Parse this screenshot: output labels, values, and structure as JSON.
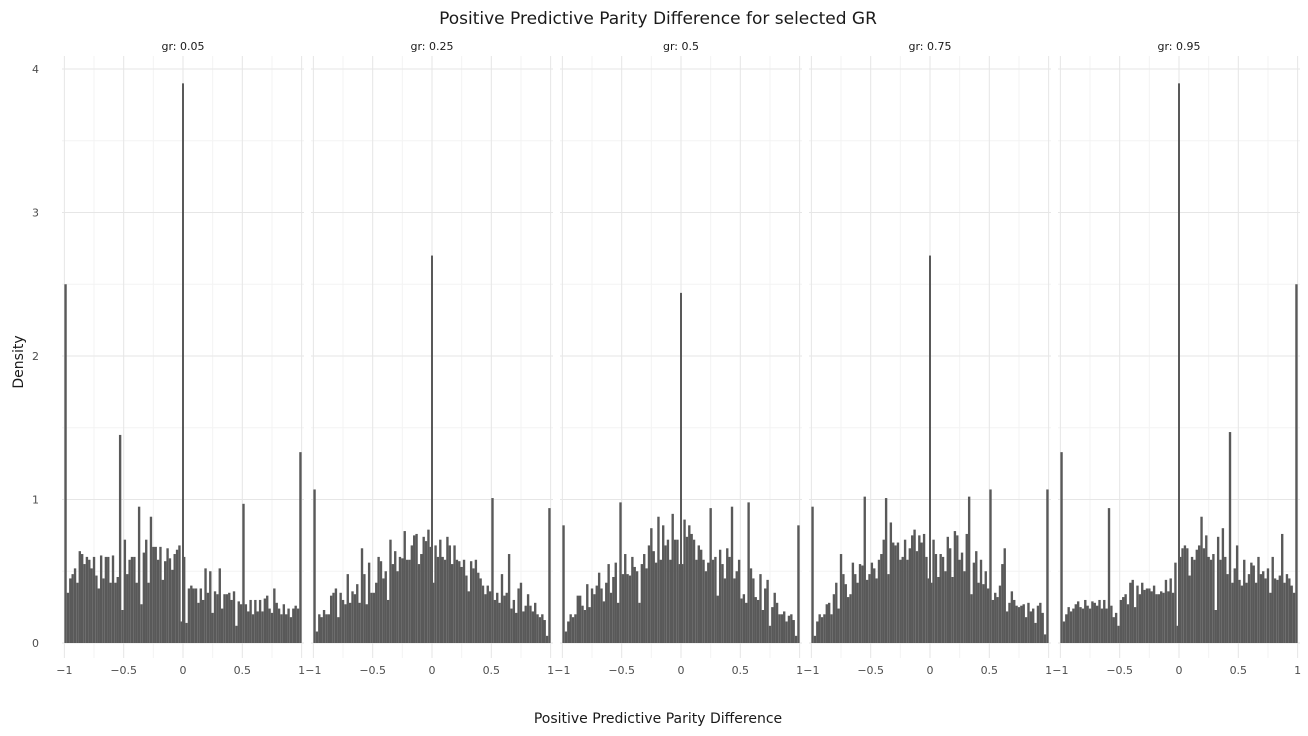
{
  "chart_data": {
    "type": "bar",
    "title": "Positive Predictive Parity Difference for selected GR",
    "xlabel": "Positive Predictive Parity Difference",
    "ylabel": "Density",
    "xlim": [
      -1.02,
      1.02
    ],
    "ylim": [
      0,
      4
    ],
    "x_ticks": [
      -1,
      -0.5,
      0,
      0.5,
      1
    ],
    "x_tick_labels": [
      "−1",
      "−0.5",
      "0",
      "0.5",
      "1"
    ],
    "y_ticks": [
      0,
      1,
      2,
      3,
      4
    ],
    "y_tick_labels": [
      "0",
      "1",
      "2",
      "3",
      "4"
    ],
    "grid": true,
    "bar_color": "#595959",
    "bin_width": 0.02,
    "bin_centers": [
      -0.99,
      -0.97,
      -0.95,
      -0.93,
      -0.91,
      -0.89,
      -0.87,
      -0.85,
      -0.83,
      -0.81,
      -0.79,
      -0.77,
      -0.75,
      -0.73,
      -0.71,
      -0.69,
      -0.67,
      -0.65,
      -0.63,
      -0.61,
      -0.59,
      -0.57,
      -0.55,
      -0.53,
      -0.51,
      -0.49,
      -0.47,
      -0.45,
      -0.43,
      -0.41,
      -0.39,
      -0.37,
      -0.35,
      -0.33,
      -0.31,
      -0.29,
      -0.27,
      -0.25,
      -0.23,
      -0.21,
      -0.19,
      -0.17,
      -0.15,
      -0.13,
      -0.11,
      -0.09,
      -0.07,
      -0.05,
      -0.03,
      -0.01,
      0.01,
      0.03,
      0.05,
      0.07,
      0.09,
      0.11,
      0.13,
      0.15,
      0.17,
      0.19,
      0.21,
      0.23,
      0.25,
      0.27,
      0.29,
      0.31,
      0.33,
      0.35,
      0.37,
      0.39,
      0.41,
      0.43,
      0.45,
      0.47,
      0.49,
      0.51,
      0.53,
      0.55,
      0.57,
      0.59,
      0.61,
      0.63,
      0.65,
      0.67,
      0.69,
      0.71,
      0.73,
      0.75,
      0.77,
      0.79,
      0.81,
      0.83,
      0.85,
      0.87,
      0.89,
      0.91,
      0.93,
      0.95,
      0.97,
      0.99
    ],
    "panels": [
      {
        "label": "gr: 0.05",
        "values": [
          2.5,
          0.35,
          0.45,
          0.48,
          0.52,
          0.42,
          0.64,
          0.62,
          0.55,
          0.6,
          0.58,
          0.52,
          0.6,
          0.47,
          0.38,
          0.61,
          0.45,
          0.6,
          0.6,
          0.42,
          0.61,
          0.42,
          0.46,
          1.45,
          0.23,
          0.72,
          0.48,
          0.58,
          0.6,
          0.6,
          0.42,
          0.95,
          0.27,
          0.63,
          0.72,
          0.42,
          0.88,
          0.67,
          0.67,
          0.58,
          0.67,
          0.44,
          0.57,
          0.66,
          0.59,
          0.51,
          0.62,
          0.65,
          0.68,
          0.15,
          0.6,
          0.14,
          0.38,
          0.4,
          0.38,
          0.38,
          0.28,
          0.38,
          0.3,
          0.52,
          0.35,
          0.5,
          0.21,
          0.36,
          0.34,
          0.52,
          0.24,
          0.34,
          0.34,
          0.35,
          0.3,
          0.36,
          0.12,
          0.29,
          0.27,
          0.97,
          0.27,
          0.22,
          0.3,
          0.2,
          0.3,
          0.22,
          0.3,
          0.22,
          0.31,
          0.33,
          0.24,
          0.21,
          0.38,
          0.28,
          0.24,
          0.2,
          0.27,
          0.2,
          0.24,
          0.18,
          0.24,
          0.26,
          0.24,
          1.33
        ],
        "zero_spike": 3.9
      },
      {
        "label": "gr: 0.25",
        "values": [
          1.07,
          0.08,
          0.2,
          0.18,
          0.23,
          0.2,
          0.2,
          0.33,
          0.35,
          0.38,
          0.18,
          0.35,
          0.3,
          0.27,
          0.48,
          0.28,
          0.36,
          0.34,
          0.41,
          0.28,
          0.66,
          0.48,
          0.27,
          0.56,
          0.35,
          0.35,
          0.42,
          0.6,
          0.57,
          0.45,
          0.5,
          0.3,
          0.72,
          0.55,
          0.64,
          0.5,
          0.6,
          0.59,
          0.78,
          0.58,
          0.58,
          0.68,
          0.75,
          0.76,
          0.55,
          0.62,
          0.74,
          0.71,
          0.79,
          0.67,
          0.42,
          0.68,
          0.6,
          0.72,
          0.6,
          0.58,
          0.74,
          0.68,
          0.55,
          0.68,
          0.58,
          0.57,
          0.53,
          0.58,
          0.47,
          0.36,
          0.57,
          0.52,
          0.58,
          0.49,
          0.45,
          0.4,
          0.34,
          0.4,
          0.36,
          1.01,
          0.3,
          0.35,
          0.28,
          0.48,
          0.33,
          0.35,
          0.62,
          0.24,
          0.3,
          0.21,
          0.38,
          0.42,
          0.22,
          0.26,
          0.34,
          0.26,
          0.22,
          0.28,
          0.2,
          0.18,
          0.2,
          0.16,
          0.05,
          0.94
        ],
        "zero_spike": 2.7
      },
      {
        "label": "gr: 0.5",
        "values": [
          0.82,
          0.08,
          0.15,
          0.2,
          0.18,
          0.2,
          0.33,
          0.33,
          0.26,
          0.23,
          0.41,
          0.25,
          0.38,
          0.34,
          0.4,
          0.49,
          0.38,
          0.29,
          0.42,
          0.55,
          0.35,
          0.46,
          0.56,
          0.28,
          0.98,
          0.48,
          0.62,
          0.48,
          0.47,
          0.6,
          0.53,
          0.5,
          0.28,
          0.55,
          0.62,
          0.52,
          0.68,
          0.8,
          0.64,
          0.56,
          0.88,
          0.58,
          0.82,
          0.68,
          0.72,
          0.58,
          0.9,
          0.72,
          0.72,
          0.55,
          0.55,
          0.86,
          0.74,
          0.82,
          0.76,
          0.72,
          0.58,
          0.68,
          0.65,
          0.58,
          0.5,
          0.56,
          0.94,
          0.58,
          0.6,
          0.33,
          0.65,
          0.55,
          0.45,
          0.66,
          0.6,
          0.95,
          0.45,
          0.5,
          0.58,
          0.31,
          0.34,
          0.28,
          0.98,
          0.52,
          0.45,
          0.32,
          0.3,
          0.48,
          0.23,
          0.38,
          0.44,
          0.12,
          0.25,
          0.35,
          0.28,
          0.2,
          0.2,
          0.22,
          0.15,
          0.19,
          0.2,
          0.16,
          0.05,
          0.82
        ],
        "zero_spike": 2.44
      },
      {
        "label": "gr: 0.75",
        "values": [
          0.95,
          0.05,
          0.15,
          0.2,
          0.18,
          0.2,
          0.27,
          0.28,
          0.2,
          0.34,
          0.42,
          0.24,
          0.62,
          0.48,
          0.41,
          0.32,
          0.34,
          0.56,
          0.48,
          0.42,
          0.55,
          0.54,
          1.02,
          0.44,
          0.48,
          0.56,
          0.52,
          0.45,
          0.58,
          0.62,
          0.72,
          1.01,
          0.48,
          0.84,
          0.7,
          0.68,
          0.7,
          0.58,
          0.6,
          0.72,
          0.58,
          0.66,
          0.75,
          0.79,
          0.64,
          0.75,
          0.7,
          0.76,
          0.6,
          0.45,
          0.42,
          0.72,
          0.62,
          0.46,
          0.62,
          0.6,
          0.5,
          0.74,
          0.66,
          0.46,
          0.78,
          0.75,
          0.58,
          0.63,
          0.5,
          0.76,
          1.02,
          0.34,
          0.56,
          0.64,
          0.42,
          0.58,
          0.41,
          0.5,
          0.38,
          1.07,
          0.3,
          0.35,
          0.32,
          0.4,
          0.55,
          0.66,
          0.22,
          0.28,
          0.36,
          0.3,
          0.26,
          0.25,
          0.26,
          0.27,
          0.18,
          0.28,
          0.22,
          0.24,
          0.14,
          0.26,
          0.28,
          0.21,
          0.06,
          1.07
        ],
        "zero_spike": 2.7
      },
      {
        "label": "gr: 0.95",
        "values": [
          1.33,
          0.15,
          0.2,
          0.25,
          0.22,
          0.24,
          0.27,
          0.29,
          0.25,
          0.24,
          0.3,
          0.26,
          0.24,
          0.29,
          0.28,
          0.26,
          0.3,
          0.24,
          0.3,
          0.24,
          0.94,
          0.26,
          0.18,
          0.21,
          0.12,
          0.3,
          0.32,
          0.34,
          0.27,
          0.42,
          0.44,
          0.25,
          0.4,
          0.34,
          0.42,
          0.37,
          0.38,
          0.38,
          0.36,
          0.4,
          0.34,
          0.34,
          0.36,
          0.35,
          0.44,
          0.36,
          0.45,
          0.35,
          0.56,
          0.12,
          0.6,
          0.66,
          0.68,
          0.66,
          0.47,
          0.6,
          0.58,
          0.65,
          0.68,
          0.88,
          0.66,
          0.75,
          0.6,
          0.58,
          0.62,
          0.23,
          0.74,
          0.58,
          0.8,
          0.6,
          0.48,
          1.47,
          0.42,
          0.52,
          0.68,
          0.44,
          0.4,
          0.58,
          0.42,
          0.48,
          0.56,
          0.54,
          0.42,
          0.6,
          0.48,
          0.5,
          0.45,
          0.52,
          0.35,
          0.6,
          0.45,
          0.44,
          0.47,
          0.76,
          0.42,
          0.48,
          0.45,
          0.4,
          0.35,
          2.5
        ],
        "zero_spike": 3.9
      }
    ]
  }
}
